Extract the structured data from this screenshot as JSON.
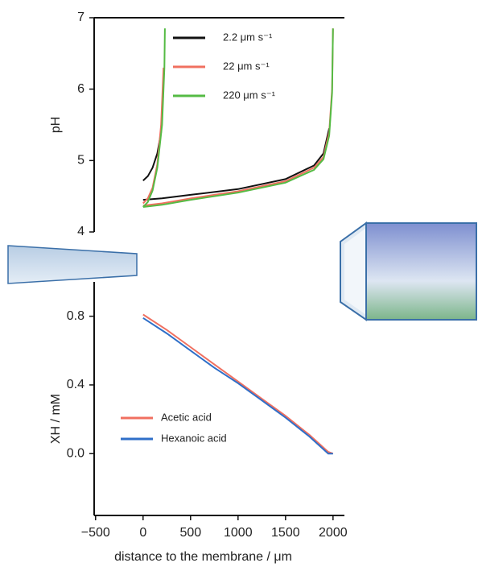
{
  "chart_data": [
    {
      "type": "line",
      "y_label": "pH",
      "xlim": [
        -515,
        2120
      ],
      "ylim": [
        4,
        7
      ],
      "yticks": [
        4,
        5,
        6,
        7
      ],
      "series": [
        {
          "name": "2.2 μm s⁻¹",
          "color": "#111111",
          "x": [
            0,
            50,
            100,
            150,
            190,
            210,
            null,
            0,
            200,
            500,
            1000,
            1500,
            1800,
            1900,
            1960
          ],
          "values": [
            4.72,
            4.78,
            4.9,
            5.1,
            5.4,
            5.9,
            null,
            4.45,
            4.47,
            4.52,
            4.6,
            4.74,
            4.93,
            5.1,
            5.45
          ]
        },
        {
          "name": "22 μm s⁻¹",
          "color": "#f07060",
          "x": [
            0,
            50,
            100,
            150,
            190,
            215,
            null,
            0,
            200,
            500,
            1000,
            1500,
            1800,
            1900,
            1960,
            1990,
            2000
          ],
          "values": [
            4.4,
            4.47,
            4.62,
            4.95,
            5.5,
            6.3,
            null,
            4.37,
            4.4,
            4.47,
            4.57,
            4.71,
            4.9,
            5.05,
            5.4,
            6.0,
            6.85
          ]
        },
        {
          "name": "220 μm s⁻¹",
          "color": "#55bb44",
          "x": [
            0,
            50,
            100,
            150,
            200,
            225,
            230,
            null,
            0,
            200,
            500,
            1000,
            1500,
            1800,
            1900,
            1960,
            1990,
            2000
          ],
          "values": [
            4.35,
            4.42,
            4.58,
            4.9,
            5.5,
            6.3,
            6.85,
            null,
            4.35,
            4.38,
            4.45,
            4.55,
            4.69,
            4.87,
            5.02,
            5.35,
            5.95,
            6.85
          ]
        }
      ]
    },
    {
      "type": "line",
      "x_label": "distance to the membrane / μm",
      "y_label": "XH / mM",
      "xlim": [
        -515,
        2120
      ],
      "ylim": [
        -0.36,
        1.0
      ],
      "xticks": [
        {
          "value": -500,
          "label": "−500"
        },
        0,
        500,
        1000,
        1500,
        2000
      ],
      "yticks": [
        {
          "value": 0,
          "label": "0.0"
        },
        0.4,
        0.8
      ],
      "series": [
        {
          "name": "Acetic acid",
          "color": "#f07060",
          "x": [
            0,
            250,
            500,
            750,
            1000,
            1250,
            1500,
            1750,
            1950,
            2000
          ],
          "values": [
            0.81,
            0.72,
            0.62,
            0.52,
            0.42,
            0.32,
            0.22,
            0.11,
            0.01,
            0.0
          ]
        },
        {
          "name": "Hexanoic acid",
          "color": "#2f6fc8",
          "x": [
            0,
            250,
            500,
            750,
            1000,
            1250,
            1500,
            1750,
            1950,
            2000
          ],
          "values": [
            0.79,
            0.7,
            0.6,
            0.5,
            0.41,
            0.31,
            0.21,
            0.1,
            0.0,
            0.0
          ]
        }
      ]
    }
  ]
}
